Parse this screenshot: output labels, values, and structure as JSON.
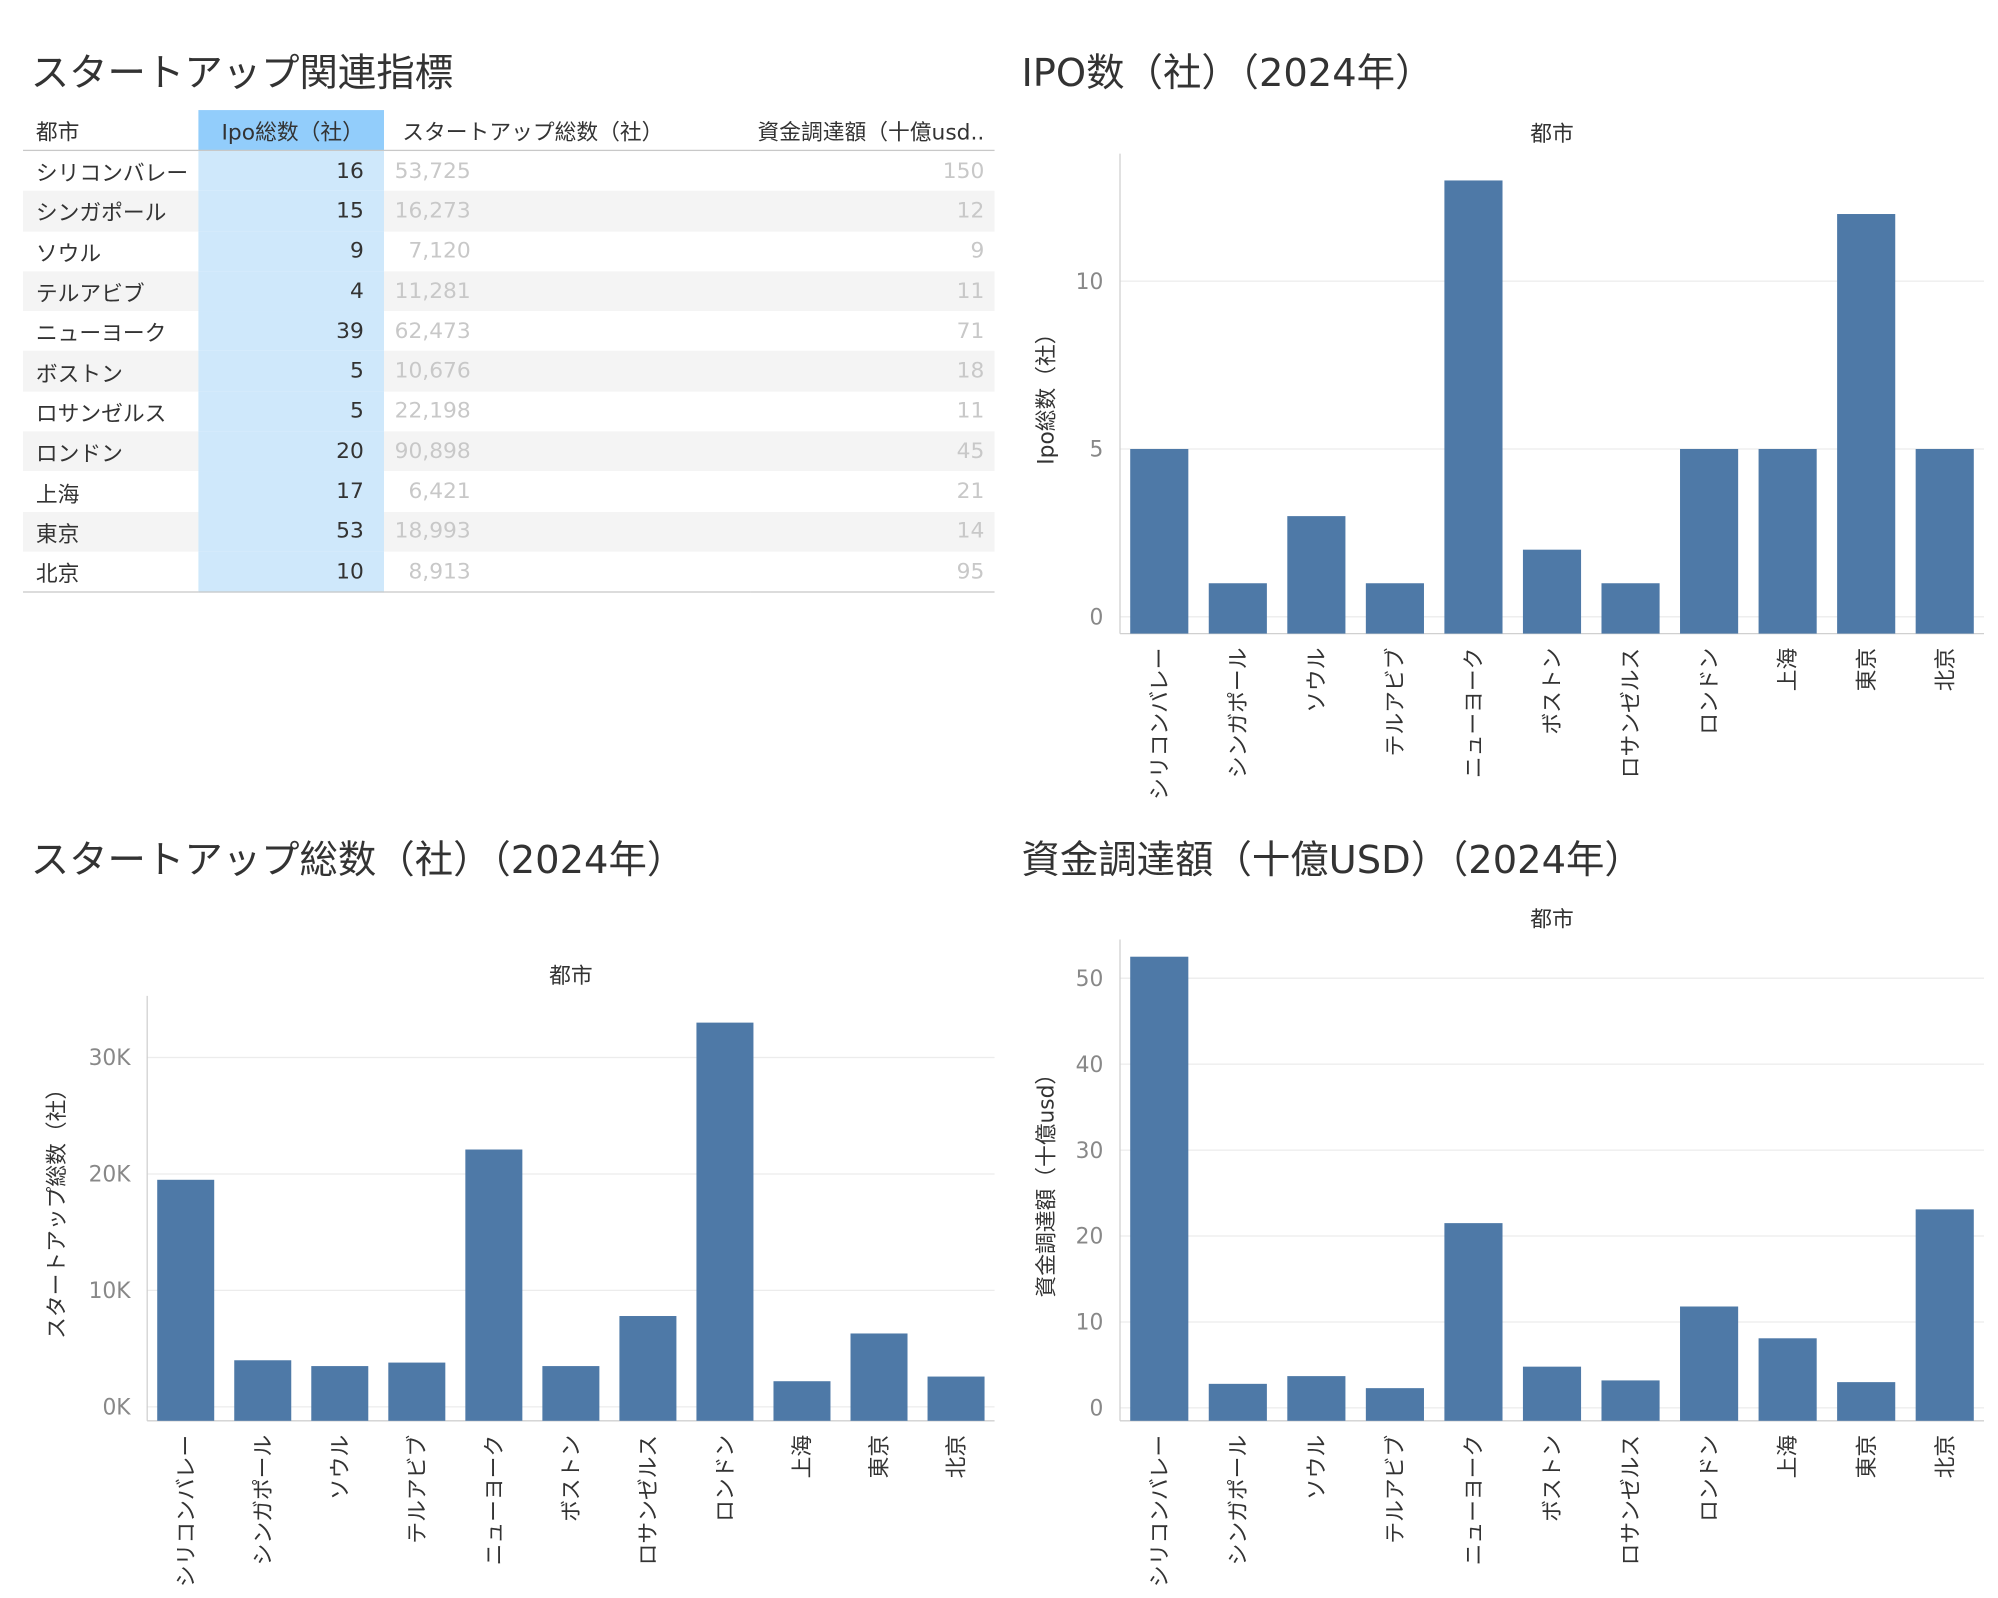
{
  "table": {
    "title": "スタートアップ関連指標",
    "headers": {
      "city": "都市",
      "ipo": "Ipo総数（社）",
      "startups": "スタートアップ総数（社）",
      "funding": "資金調達額（十億usd.."
    },
    "rows": [
      {
        "city": "シリコンバレー",
        "ipo": "16",
        "startups": "53,725",
        "funding": "150"
      },
      {
        "city": "シンガポール",
        "ipo": "15",
        "startups": "16,273",
        "funding": "12"
      },
      {
        "city": "ソウル",
        "ipo": "9",
        "startups": "7,120",
        "funding": "9"
      },
      {
        "city": "テルアビブ",
        "ipo": "4",
        "startups": "11,281",
        "funding": "11"
      },
      {
        "city": "ニューヨーク",
        "ipo": "39",
        "startups": "62,473",
        "funding": "71"
      },
      {
        "city": "ボストン",
        "ipo": "5",
        "startups": "10,676",
        "funding": "18"
      },
      {
        "city": "ロサンゼルス",
        "ipo": "5",
        "startups": "22,198",
        "funding": "11"
      },
      {
        "city": "ロンドン",
        "ipo": "20",
        "startups": "90,898",
        "funding": "45"
      },
      {
        "city": "上海",
        "ipo": "17",
        "startups": "6,421",
        "funding": "21"
      },
      {
        "city": "東京",
        "ipo": "53",
        "startups": "18,993",
        "funding": "14"
      },
      {
        "city": "北京",
        "ipo": "10",
        "startups": "8,913",
        "funding": "95"
      }
    ]
  },
  "colors": {
    "bar": "#4e79a7",
    "grid": "#ececec",
    "axis": "#d0d0d0",
    "tick_text": "#888888",
    "header_highlight": "#92cdfb",
    "column_highlight": "#cfe8fb"
  },
  "chart_data": [
    {
      "id": "ipo",
      "type": "bar",
      "title": "IPO数（社）（2024年）",
      "xlabel": "都市",
      "ylabel": "Ipo総数（社）",
      "categories": [
        "シリコンバレー",
        "シンガポール",
        "ソウル",
        "テルアビブ",
        "ニューヨーク",
        "ボストン",
        "ロサンゼルス",
        "ロンドン",
        "上海",
        "東京",
        "北京"
      ],
      "values": [
        5,
        1,
        3,
        1,
        13,
        2,
        1,
        5,
        5,
        12,
        5
      ],
      "ylim": [
        -0.5,
        13.8
      ],
      "yticks": [
        0,
        5,
        10
      ],
      "ytick_labels": [
        "0",
        "5",
        "10"
      ],
      "grid": true
    },
    {
      "id": "startups",
      "type": "bar",
      "title": "スタートアップ総数（社）（2024年）",
      "xlabel": "都市",
      "ylabel": "スタートアップ総数（社）",
      "categories": [
        "シリコンバレー",
        "シンガポール",
        "ソウル",
        "テルアビブ",
        "ニューヨーク",
        "ボストン",
        "ロサンゼルス",
        "ロンドン",
        "上海",
        "東京",
        "北京"
      ],
      "values": [
        19500,
        4000,
        3500,
        3800,
        22100,
        3500,
        7800,
        33000,
        2200,
        6300,
        2600
      ],
      "ylim": [
        -1200,
        35300
      ],
      "yticks": [
        0,
        10000,
        20000,
        30000
      ],
      "ytick_labels": [
        "0K",
        "10K",
        "20K",
        "30K"
      ],
      "grid": true
    },
    {
      "id": "funding",
      "type": "bar",
      "title": "資金調達額（十億USD）（2024年）",
      "xlabel": "都市",
      "ylabel": "資金調達額（十億usd）",
      "categories": [
        "シリコンバレー",
        "シンガポール",
        "ソウル",
        "テルアビブ",
        "ニューヨーク",
        "ボストン",
        "ロサンゼルス",
        "ロンドン",
        "上海",
        "東京",
        "北京"
      ],
      "values": [
        52.5,
        2.8,
        3.7,
        2.3,
        21.5,
        4.8,
        3.2,
        11.8,
        8.1,
        3.0,
        23.1
      ],
      "ylim": [
        -1.5,
        54.5
      ],
      "yticks": [
        0,
        10,
        20,
        30,
        40,
        50
      ],
      "ytick_labels": [
        "0",
        "10",
        "20",
        "30",
        "40",
        "50"
      ],
      "grid": true
    }
  ]
}
